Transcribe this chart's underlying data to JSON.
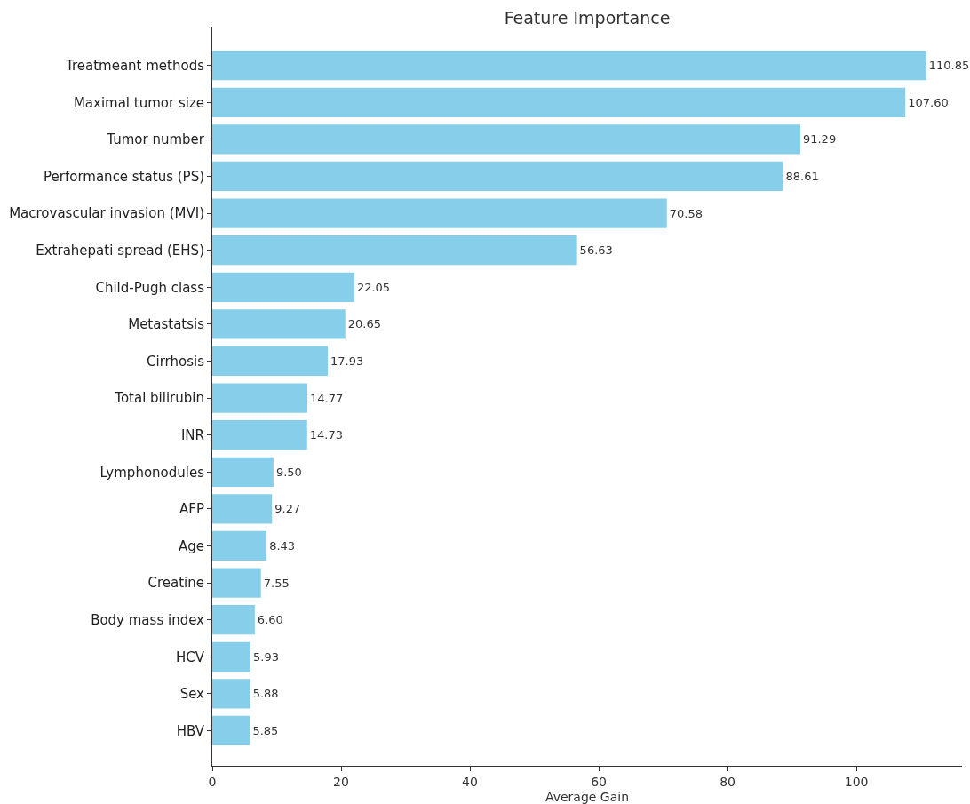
{
  "chart_data": {
    "type": "bar",
    "orientation": "horizontal",
    "title": "Feature Importance",
    "xlabel": "Average Gain",
    "categories": [
      "Treatmeant methods",
      "Maximal tumor size",
      "Tumor number",
      "Performance status (PS)",
      "Macrovascular invasion (MVI)",
      "Extrahepati spread (EHS)",
      "Child-Pugh class",
      "Metastatsis",
      "Cirrhosis",
      "Total bilirubin",
      "INR",
      "Lymphonodules",
      "AFP",
      "Age",
      "Creatine",
      "Body mass index",
      "HCV",
      "Sex",
      "HBV"
    ],
    "values": [
      110.85,
      107.6,
      91.29,
      88.61,
      70.58,
      56.63,
      22.05,
      20.65,
      17.93,
      14.77,
      14.73,
      9.5,
      9.27,
      8.43,
      7.55,
      6.6,
      5.93,
      5.88,
      5.85
    ],
    "value_labels": [
      "110.85",
      "107.60",
      "91.29",
      "88.61",
      "70.58",
      "56.63",
      "22.05",
      "20.65",
      "17.93",
      "14.77",
      "14.73",
      "9.50",
      "9.27",
      "8.43",
      "7.55",
      "6.60",
      "5.93",
      "5.88",
      "5.85"
    ],
    "color": "#87ceeb",
    "xlim": [
      0,
      116.4
    ],
    "xticks": [
      0,
      20,
      40,
      60,
      80,
      100
    ],
    "grid": false
  }
}
